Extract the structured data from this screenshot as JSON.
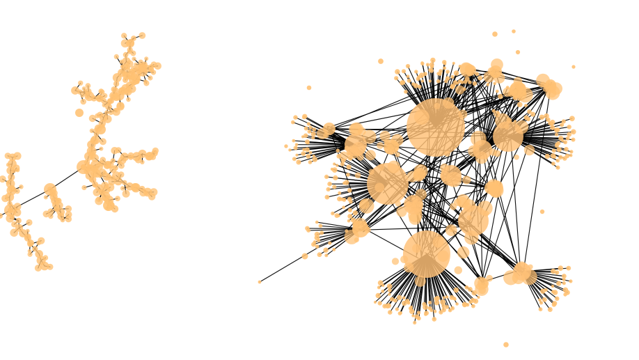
{
  "figure": {
    "panels": [
      {
        "name": "tree-network",
        "visual_type": "node-link graph",
        "style": "hierarchical tree with repeated branch clusters"
      },
      {
        "name": "dense-hub-network",
        "visual_type": "node-link graph",
        "style": "dense network with large hub nodes and star-like spokes"
      }
    ]
  },
  "colors": {
    "background": "#ffffff",
    "edge": "#000000",
    "node_fill": "#ffc173",
    "node_hub_fill": "#ffc178",
    "node_edge_fill": "#f3a94d"
  },
  "icons": {
    "left_graph": "tree-network-graphic",
    "right_graph": "hub-network-graphic"
  }
}
